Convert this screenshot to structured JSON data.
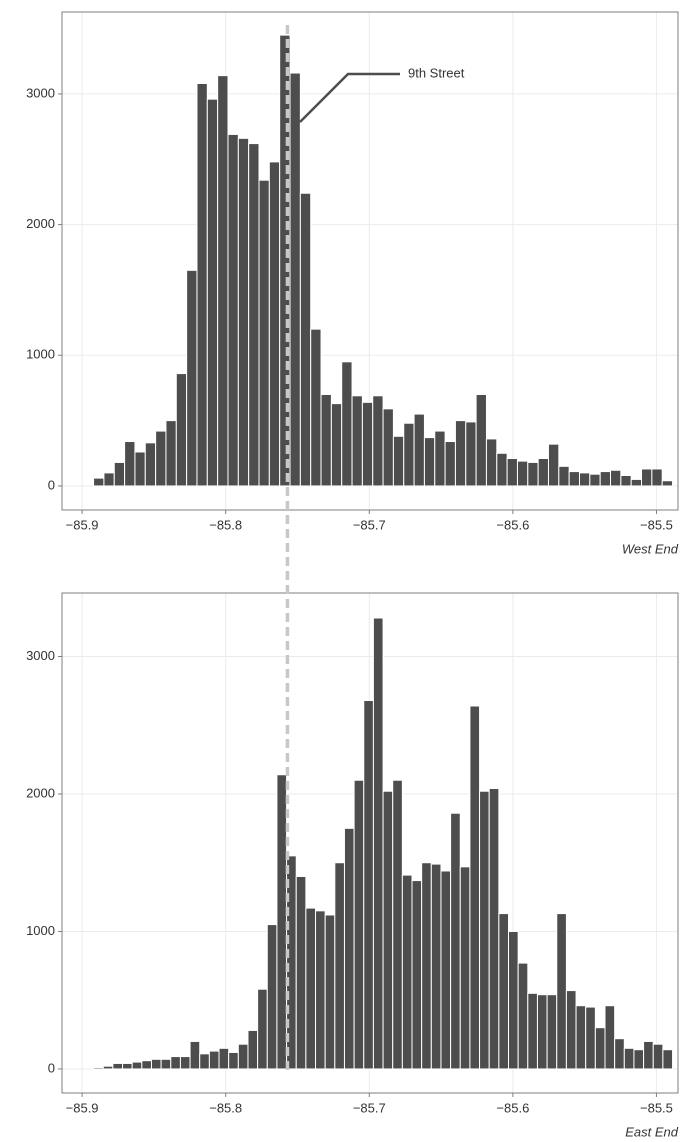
{
  "chart_data": [
    {
      "type": "histogram",
      "xlabel": "West End",
      "bins": [
        -85.892,
        -85.8848,
        -85.8776,
        -85.8704,
        -85.8632,
        -85.856,
        -85.8488,
        -85.8416,
        -85.8344,
        -85.8272,
        -85.82,
        -85.8128,
        -85.8056,
        -85.7984,
        -85.7912,
        -85.784,
        -85.7768,
        -85.7696,
        -85.7624,
        -85.7552,
        -85.748,
        -85.7408,
        -85.7336,
        -85.7264,
        -85.7192,
        -85.712,
        -85.7048,
        -85.6976,
        -85.6904,
        -85.6832,
        -85.676,
        -85.6688,
        -85.6616,
        -85.6544,
        -85.6472,
        -85.64,
        -85.6328,
        -85.6256,
        -85.6184,
        -85.6112,
        -85.604,
        -85.5968,
        -85.5896,
        -85.5824,
        -85.5752,
        -85.568,
        -85.5608,
        -85.5536,
        -85.5464,
        -85.5392,
        -85.532,
        -85.5248,
        -85.5176,
        -85.5104,
        -85.5032,
        -85.496,
        -85.4888
      ],
      "values": [
        60,
        100,
        180,
        340,
        260,
        330,
        420,
        500,
        860,
        1650,
        3080,
        2960,
        3140,
        2690,
        2660,
        2620,
        2340,
        2480,
        3450,
        3160,
        2240,
        1200,
        700,
        630,
        950,
        690,
        640,
        690,
        590,
        380,
        480,
        550,
        370,
        420,
        340,
        500,
        490,
        700,
        360,
        250,
        210,
        190,
        180,
        210,
        320,
        150,
        110,
        100,
        90,
        110,
        120,
        80,
        50,
        130,
        130,
        40
      ],
      "color": "#4d4d4d",
      "xlim": [
        -85.914,
        -85.485
      ],
      "ylim": [
        -184,
        3627
      ],
      "xticks": [
        {
          "value": -85.9,
          "label": "−85.9"
        },
        {
          "value": -85.8,
          "label": "−85.8"
        },
        {
          "value": -85.7,
          "label": "−85.7"
        },
        {
          "value": -85.6,
          "label": "−85.6"
        },
        {
          "value": -85.5,
          "label": "−85.5"
        }
      ],
      "yticks": [
        0,
        1000,
        2000,
        3000
      ],
      "grid": true,
      "vline": -85.757,
      "annotation": "9th Street"
    },
    {
      "type": "histogram",
      "xlabel": "East End",
      "bins": [
        -85.892,
        -85.88528,
        -85.87856,
        -85.87184,
        -85.86512,
        -85.8584,
        -85.85168,
        -85.84496,
        -85.83824,
        -85.83152,
        -85.8248,
        -85.81808,
        -85.81136,
        -85.80464,
        -85.79792,
        -85.7912,
        -85.78448,
        -85.77776,
        -85.77104,
        -85.76432,
        -85.7576,
        -85.75088,
        -85.74416,
        -85.73744,
        -85.73072,
        -85.724,
        -85.71728,
        -85.71056,
        -85.70384,
        -85.69712,
        -85.6904,
        -85.68368,
        -85.67696,
        -85.67024,
        -85.66352,
        -85.6568,
        -85.65008,
        -85.64336,
        -85.63664,
        -85.62992,
        -85.6232,
        -85.61648,
        -85.60976,
        -85.60304,
        -85.59632,
        -85.5896,
        -85.58288,
        -85.57616,
        -85.56944,
        -85.56272,
        -85.556,
        -85.54928,
        -85.54256,
        -85.53584,
        -85.52912,
        -85.5224,
        -85.51568,
        -85.50896,
        -85.50224,
        -85.49552,
        -85.4888
      ],
      "values": [
        10,
        20,
        40,
        40,
        50,
        60,
        70,
        70,
        90,
        90,
        200,
        110,
        130,
        150,
        120,
        180,
        280,
        580,
        1050,
        2140,
        1550,
        1400,
        1170,
        1150,
        1120,
        1500,
        1750,
        2100,
        2680,
        3280,
        2020,
        2100,
        1410,
        1370,
        1500,
        1490,
        1440,
        1860,
        1470,
        2640,
        2020,
        2040,
        1130,
        1000,
        770,
        550,
        540,
        540,
        1130,
        570,
        460,
        450,
        300,
        460,
        220,
        150,
        140,
        200,
        180,
        140
      ],
      "color": "#4d4d4d",
      "xlim": [
        -85.914,
        -85.485
      ],
      "ylim": [
        -175,
        3462
      ],
      "xticks": [
        {
          "value": -85.9,
          "label": "−85.9"
        },
        {
          "value": -85.8,
          "label": "−85.8"
        },
        {
          "value": -85.7,
          "label": "−85.7"
        },
        {
          "value": -85.6,
          "label": "−85.6"
        },
        {
          "value": -85.5,
          "label": "−85.5"
        }
      ],
      "yticks": [
        0,
        1000,
        2000,
        3000
      ],
      "grid": true
    }
  ]
}
